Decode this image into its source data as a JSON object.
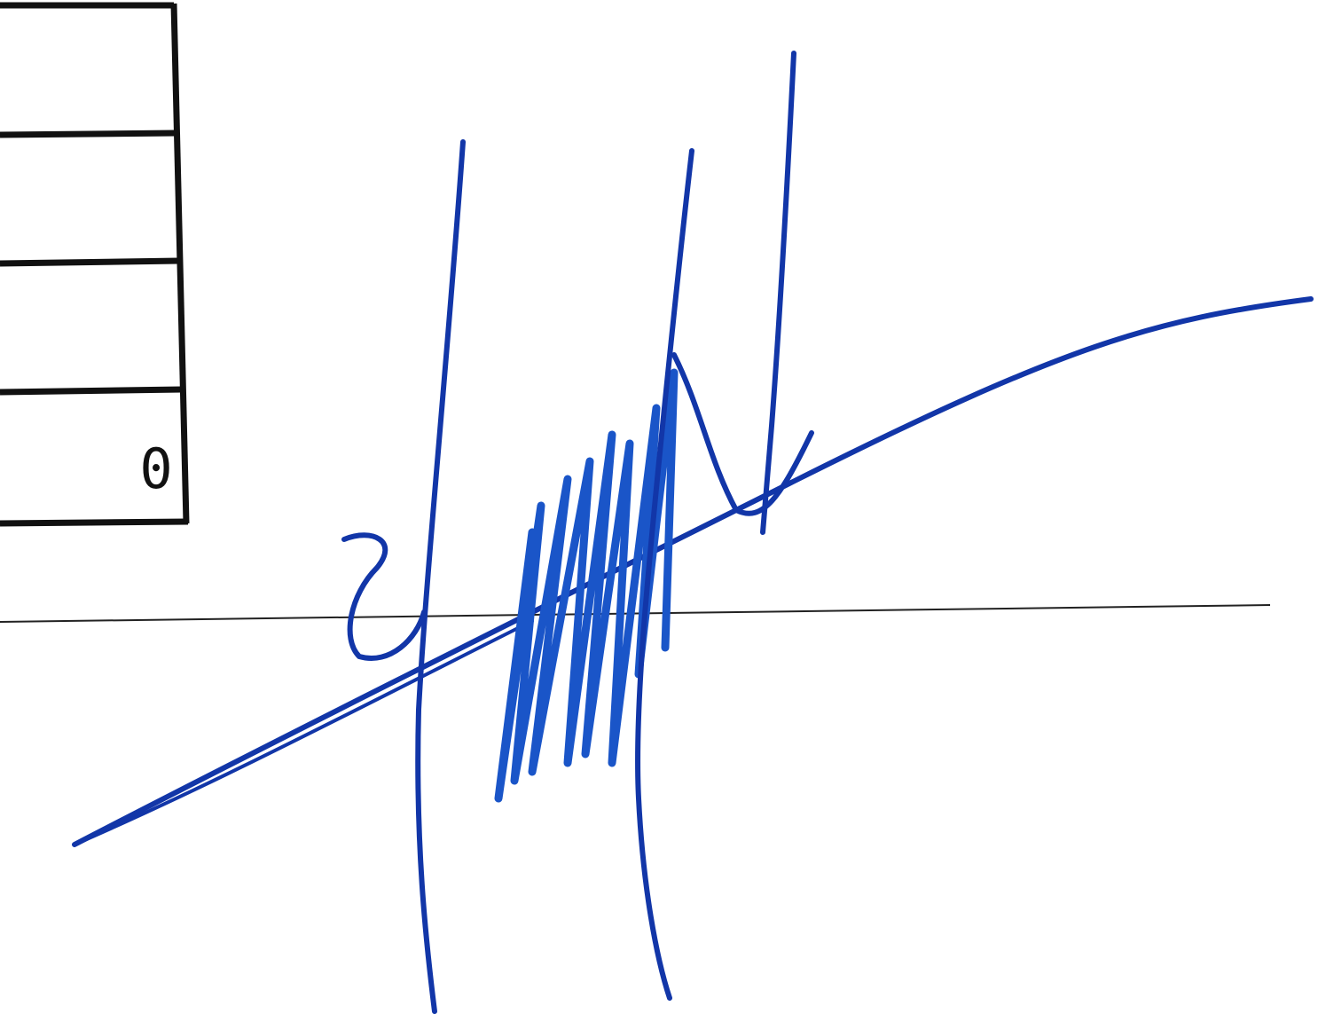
{
  "table": {
    "cell_value": "0"
  }
}
